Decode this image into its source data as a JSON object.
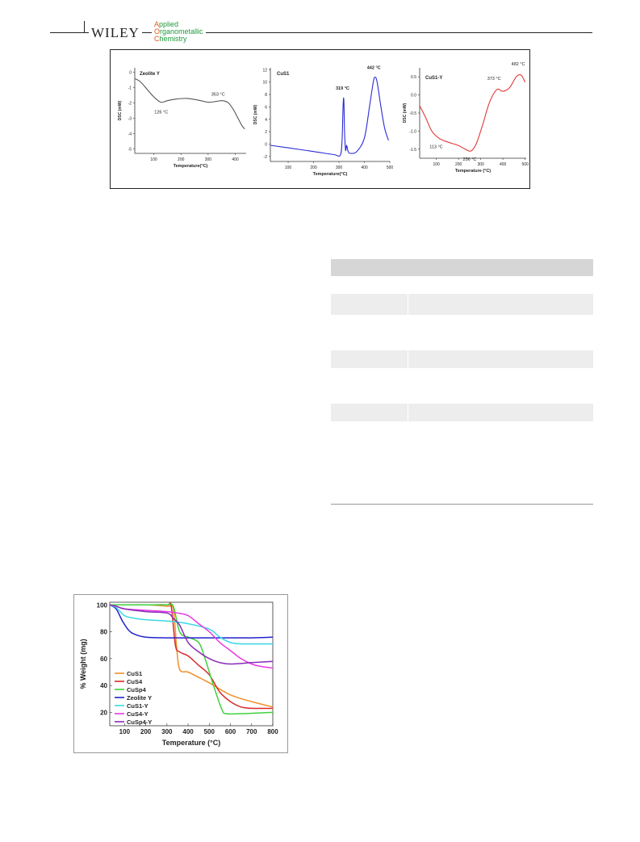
{
  "header": {
    "brand": "WILEY",
    "journal_line1": "Applied",
    "journal_line2": "Organometallic",
    "journal_line3": "Chemistry",
    "journal_color": "#1e9a3c",
    "initial_color": "#e25a1c"
  },
  "table": {
    "header_color": "#d6d6d6",
    "stripe_color": "#ededed",
    "rows": 7
  },
  "chart_data": [
    {
      "type": "line",
      "panel_label": "Zeolite Y",
      "xlabel": "Temperature(°C)",
      "ylabel": "DSC (mW)",
      "xlim": [
        30,
        440
      ],
      "ylim": [
        -5.3,
        0.3
      ],
      "xticks": [
        100,
        200,
        300,
        400
      ],
      "yticks": [
        0,
        -1,
        -2,
        -3,
        -4,
        -5
      ],
      "color": "#555555",
      "x": [
        30,
        50,
        75,
        100,
        126,
        150,
        180,
        220,
        260,
        300,
        330,
        353,
        375,
        395,
        410,
        425,
        435
      ],
      "y": [
        -0.4,
        -0.6,
        -1.1,
        -1.6,
        -1.95,
        -1.85,
        -1.75,
        -1.7,
        -1.8,
        -1.95,
        -1.9,
        -1.85,
        -2.0,
        -2.5,
        -3.0,
        -3.5,
        -3.7
      ],
      "annotations": [
        {
          "text": "126 °C",
          "x": 126,
          "y": -1.95
        },
        {
          "text": "353 °C",
          "x": 353,
          "y": -1.85
        }
      ]
    },
    {
      "type": "line",
      "panel_label": "CuS1",
      "xlabel": "Temperature(°C)",
      "ylabel": "DSC (mW)",
      "xlim": [
        30,
        500
      ],
      "ylim": [
        -2.8,
        12.3
      ],
      "xticks": [
        100,
        200,
        300,
        400,
        500
      ],
      "yticks": [
        12,
        10,
        8,
        6,
        4,
        2,
        0,
        -2
      ],
      "color": "#2b2bd6",
      "x": [
        30,
        100,
        200,
        280,
        305,
        312,
        316,
        319,
        322,
        326,
        330,
        336,
        345,
        370,
        400,
        420,
        435,
        442,
        450,
        465,
        480,
        495
      ],
      "y": [
        -0.2,
        -0.6,
        -1.2,
        -1.7,
        -1.8,
        0.5,
        6.0,
        7.2,
        2.0,
        -1.0,
        -0.2,
        -1.2,
        -1.5,
        -1.2,
        1.0,
        6.0,
        10.0,
        10.8,
        10.0,
        6.0,
        2.5,
        0.6
      ],
      "annotations": [
        {
          "text": "319 °C",
          "x": 319,
          "y": 7.2
        },
        {
          "text": "442 °C",
          "x": 442,
          "y": 10.8
        }
      ]
    },
    {
      "type": "line",
      "panel_label": "CuS1-Y",
      "xlabel": "Temperature (°C)",
      "ylabel": "DSC (mW)",
      "xlim": [
        25,
        505
      ],
      "ylim": [
        -1.75,
        0.75
      ],
      "xticks": [
        100,
        200,
        300,
        400,
        500
      ],
      "yticks": [
        0.5,
        0.0,
        -0.5,
        -1.0,
        -1.5
      ],
      "color": "#e03a3a",
      "x": [
        25,
        50,
        80,
        113,
        150,
        200,
        230,
        256,
        280,
        310,
        340,
        373,
        400,
        430,
        460,
        482,
        500
      ],
      "y": [
        -0.3,
        -0.6,
        -1.0,
        -1.2,
        -1.3,
        -1.4,
        -1.5,
        -1.55,
        -1.35,
        -0.8,
        -0.2,
        0.15,
        0.1,
        0.2,
        0.5,
        0.55,
        0.35
      ],
      "annotations": [
        {
          "text": "113 °C",
          "x": 113,
          "y": -1.2
        },
        {
          "text": "256 °C",
          "x": 256,
          "y": -1.55
        },
        {
          "text": "373 °C",
          "x": 373,
          "y": 0.15
        },
        {
          "text": "482 °C",
          "x": 482,
          "y": 0.55
        }
      ]
    },
    {
      "type": "line",
      "xlabel": "Temperature (°C)",
      "ylabel": "% Weight (mg)",
      "xlim": [
        30,
        800
      ],
      "ylim": [
        10,
        102
      ],
      "xticks": [
        100,
        200,
        300,
        400,
        500,
        600,
        700,
        800
      ],
      "yticks": [
        100,
        80,
        60,
        40,
        20
      ],
      "legend_position": "bottom-left",
      "series": [
        {
          "name": "CuS1",
          "color": "#f0902a",
          "x": [
            30,
            100,
            200,
            300,
            330,
            345,
            360,
            400,
            450,
            500,
            600,
            700,
            800
          ],
          "y": [
            100,
            100,
            100,
            99,
            97,
            70,
            52,
            50,
            46,
            42,
            33,
            28,
            24
          ]
        },
        {
          "name": "CuS4",
          "color": "#d82a2a",
          "x": [
            30,
            100,
            200,
            300,
            320,
            340,
            360,
            400,
            450,
            500,
            550,
            600,
            650,
            700,
            800
          ],
          "y": [
            100,
            100,
            100,
            100,
            99,
            70,
            65,
            62,
            55,
            48,
            35,
            28,
            24,
            23,
            23
          ]
        },
        {
          "name": "CuSp4",
          "color": "#3ed23e",
          "x": [
            30,
            100,
            200,
            300,
            330,
            360,
            400,
            450,
            480,
            520,
            560,
            580,
            650,
            800
          ],
          "y": [
            100,
            100,
            100,
            100,
            99,
            80,
            76,
            72,
            60,
            40,
            22,
            19,
            19,
            20
          ]
        },
        {
          "name": "Zeolite Y",
          "color": "#2222cc",
          "x": [
            30,
            60,
            90,
            120,
            150,
            200,
            300,
            400,
            500,
            600,
            700,
            800
          ],
          "y": [
            100,
            97,
            88,
            81,
            78,
            76,
            75.5,
            75.5,
            75.5,
            75.5,
            75.5,
            76
          ]
        },
        {
          "name": "CuS1-Y",
          "color": "#3ad8e6",
          "x": [
            30,
            60,
            100,
            150,
            200,
            300,
            400,
            500,
            550,
            600,
            650,
            700,
            800
          ],
          "y": [
            100,
            98,
            92,
            90,
            89,
            88,
            86,
            82,
            76,
            72,
            71,
            71,
            71
          ]
        },
        {
          "name": "CuS4-Y",
          "color": "#e83ae0",
          "x": [
            30,
            60,
            100,
            200,
            300,
            350,
            400,
            450,
            500,
            550,
            600,
            650,
            700,
            750,
            800
          ],
          "y": [
            100,
            99,
            97,
            96,
            95,
            94,
            92,
            86,
            80,
            72,
            66,
            60,
            56,
            54,
            53
          ]
        },
        {
          "name": "CuSp4-Y",
          "color": "#8a2ab8",
          "x": [
            30,
            60,
            100,
            200,
            300,
            330,
            360,
            400,
            450,
            500,
            550,
            600,
            700,
            800
          ],
          "y": [
            100,
            99,
            97,
            95,
            94,
            90,
            85,
            72,
            65,
            60,
            57,
            56,
            57,
            58
          ]
        }
      ]
    }
  ]
}
